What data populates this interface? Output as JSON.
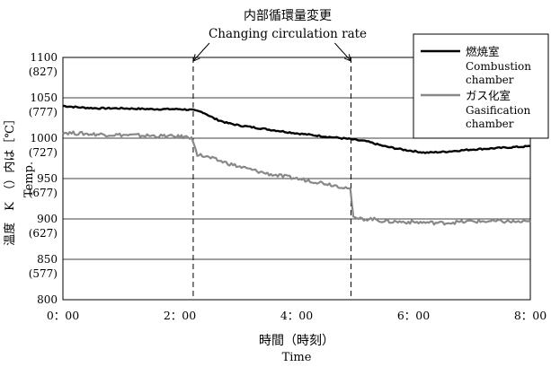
{
  "chart_data": {
    "type": "line",
    "annotation": {
      "title_ja": "内部循環量変更",
      "title_en": "Changing circulation rate",
      "x_positions": [
        2.23,
        4.93
      ]
    },
    "y_axis": {
      "label_ja": "温度　K　（）内は［℃］",
      "label_en": "Temp.",
      "ylim": [
        800,
        1100
      ],
      "ticks": [
        {
          "value": 1100,
          "label": "1100",
          "celsius": "(827)"
        },
        {
          "value": 1050,
          "label": "1050",
          "celsius": "(777)"
        },
        {
          "value": 1000,
          "label": "1000",
          "celsius": "(727)"
        },
        {
          "value": 950,
          "label": "950",
          "celsius": "(677)"
        },
        {
          "value": 900,
          "label": "900",
          "celsius": "(627)"
        },
        {
          "value": 850,
          "label": "850",
          "celsius": "(577)"
        },
        {
          "value": 800,
          "label": "800",
          "celsius": ""
        }
      ]
    },
    "x_axis": {
      "label_ja": "時間（時刻）",
      "label_en": "Time",
      "xlim": [
        0,
        8
      ],
      "ticks": [
        {
          "value": 0,
          "label": "0：00"
        },
        {
          "value": 2,
          "label": "2：00"
        },
        {
          "value": 4,
          "label": "4：00"
        },
        {
          "value": 6,
          "label": "6：00"
        },
        {
          "value": 8,
          "label": "8：00"
        }
      ]
    },
    "grid": {
      "horizontal": true,
      "vertical": false
    },
    "legend": {
      "placement": "top-right"
    },
    "series": [
      {
        "name_ja": "燃焼室",
        "name_en_1": "Combustion",
        "name_en_2": "chamber",
        "color": "#000000",
        "x": [
          0,
          0.3,
          0.6,
          1.0,
          1.5,
          2.0,
          2.2,
          2.4,
          2.6,
          2.8,
          3.0,
          3.5,
          4.0,
          4.5,
          4.9,
          5.2,
          5.5,
          5.8,
          6.0,
          6.2,
          6.5,
          7.0,
          7.5,
          8.0
        ],
        "y": [
          1040,
          1038,
          1037,
          1037,
          1036,
          1036,
          1035,
          1032,
          1024,
          1019,
          1016,
          1011,
          1006,
          1002,
          999,
          996,
          990,
          986,
          984,
          982,
          983,
          986,
          988,
          990
        ]
      },
      {
        "name_ja": "ガス化室",
        "name_en_1": "Gasification",
        "name_en_2": "chamber",
        "color": "#888888",
        "x": [
          0,
          0.5,
          1.0,
          1.5,
          2.0,
          2.2,
          2.24,
          2.3,
          2.5,
          3.0,
          3.5,
          4.0,
          4.5,
          4.9,
          4.92,
          4.97,
          5.0,
          5.3,
          5.5,
          6.0,
          6.5,
          7.0,
          7.5,
          8.0
        ],
        "y": [
          1007,
          1005,
          1004,
          1003,
          1002,
          1001,
          993,
          980,
          976,
          965,
          956,
          950,
          944,
          938,
          937,
          903,
          900,
          900,
          897,
          896,
          895,
          897,
          897,
          896
        ]
      }
    ]
  }
}
